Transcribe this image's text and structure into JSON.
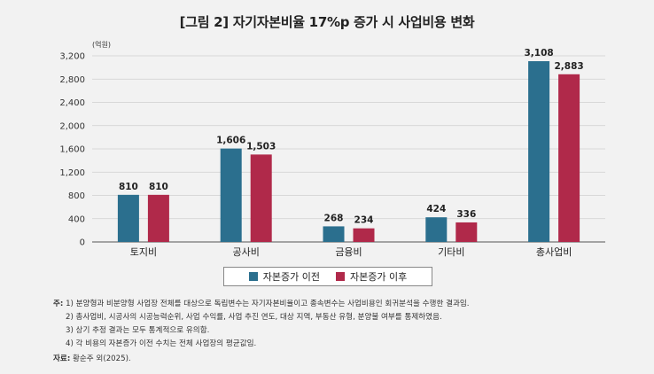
{
  "chart_data": {
    "type": "bar",
    "title": "[그림 2] 자기자본비율 17%p 증가 시 사업비용 변화",
    "unit_label": "(억원)",
    "categories": [
      "토지비",
      "공사비",
      "금융비",
      "기타비",
      "총사업비"
    ],
    "series": [
      {
        "name": "자본증가 이전",
        "values": [
          810,
          1606,
          268,
          424,
          3108
        ],
        "color": "#2b6f8e"
      },
      {
        "name": "자본증가 이후",
        "values": [
          810,
          1503,
          234,
          336,
          2883
        ],
        "color": "#b0294a"
      }
    ],
    "value_labels": [
      [
        "810",
        "1,606",
        "268",
        "424",
        "3,108"
      ],
      [
        "810",
        "1,503",
        "234",
        "336",
        "2,883"
      ]
    ],
    "yticks": [
      "0",
      "400",
      "800",
      "1,200",
      "1,600",
      "2,000",
      "2,400",
      "2,800",
      "3,200"
    ],
    "ylim": [
      0,
      3200
    ],
    "grid": true,
    "legend_position": "bottom-center"
  },
  "notes": {
    "label": "주:",
    "lines": [
      "1) 분양형과 비분양형 사업장 전체를 대상으로 독립변수는 자기자본비율이고 종속변수는 사업비용인 회귀분석을 수행한 결과임.",
      "2) 총사업비, 시공사의 시공능력순위, 사업 수익률, 사업 추진 연도, 대상 지역, 부동산 유형, 분양불 여부를 통제하였음.",
      "3) 상기 추정 결과는 모두 통계적으로 유의함.",
      "4) 각 비용의 자본증가 이전 수치는 전체 사업장의 평균값임."
    ]
  },
  "source": {
    "label": "자료:",
    "text": "황순주 외(2025)."
  }
}
